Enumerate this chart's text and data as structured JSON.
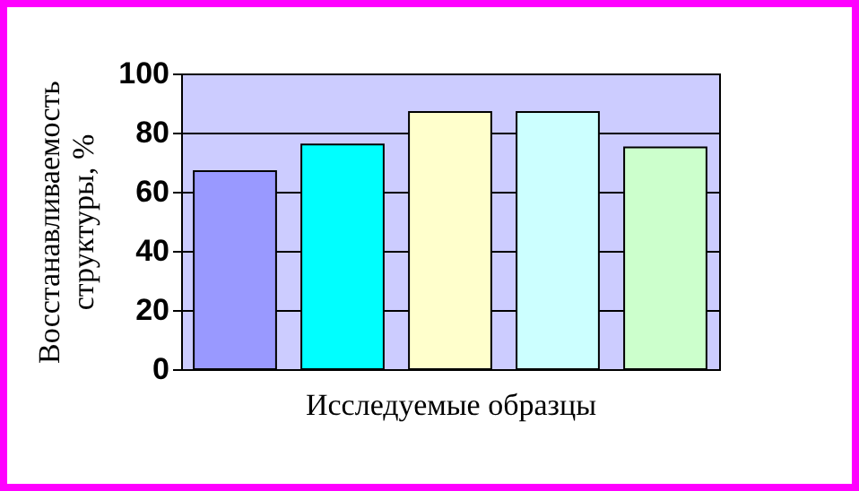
{
  "chart_data": {
    "type": "bar",
    "xlabel": "Исследуемые образцы",
    "ylabel": "Восстанавливаемость структуры, %",
    "categories": [
      null,
      null,
      null,
      null,
      null
    ],
    "values": [
      67,
      76,
      87,
      87,
      75
    ],
    "colors": [
      "#9999ff",
      "#00ffff",
      "#ffffcc",
      "#ccffff",
      "#ccffcc"
    ],
    "ylim": [
      0,
      100
    ],
    "yticks": [
      0,
      20,
      40,
      60,
      80,
      100
    ],
    "grid": "y",
    "legend": false
  }
}
